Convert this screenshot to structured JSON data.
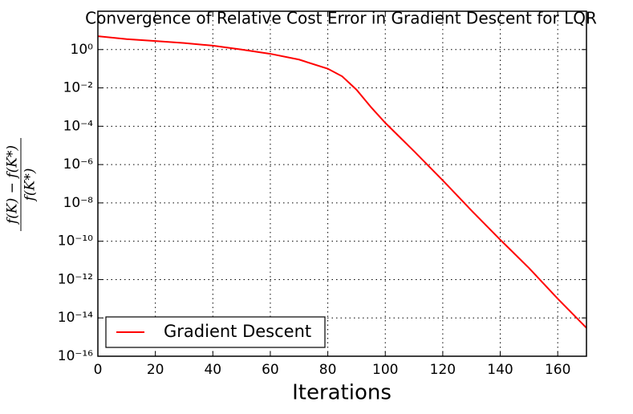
{
  "chart_data": {
    "type": "line",
    "title": "Convergence of Relative Cost Error in Gradient Descent for LQR",
    "xlabel": "Iterations",
    "ylabel": {
      "numerator": "f(K) − f(K*)",
      "denominator": "f(K*)"
    },
    "x": [
      0,
      10,
      20,
      30,
      40,
      50,
      60,
      70,
      80,
      85,
      90,
      95,
      100,
      110,
      120,
      130,
      140,
      150,
      160,
      170
    ],
    "series": [
      {
        "name": "Gradient Descent",
        "color": "#ff0000",
        "values": [
          5,
          3.5,
          2.8,
          2.2,
          1.6,
          1.0,
          0.6,
          0.3,
          0.1,
          0.04,
          0.008,
          0.001,
          0.00015,
          5e-06,
          1.5e-07,
          4e-09,
          1.2e-10,
          4e-12,
          1e-13,
          3e-15
        ]
      }
    ],
    "xlim": [
      0,
      170
    ],
    "xticks": [
      0,
      20,
      40,
      60,
      80,
      100,
      120,
      140,
      160
    ],
    "ylim": [
      1e-16,
      100
    ],
    "yscale": "log",
    "yticks": [
      {
        "value": 1e-16,
        "label": "10⁻¹⁶"
      },
      {
        "value": 1e-14,
        "label": "10⁻¹⁴"
      },
      {
        "value": 1e-12,
        "label": "10⁻¹²"
      },
      {
        "value": 1e-10,
        "label": "10⁻¹⁰"
      },
      {
        "value": 1e-08,
        "label": "10⁻⁸"
      },
      {
        "value": 1e-06,
        "label": "10⁻⁶"
      },
      {
        "value": 0.0001,
        "label": "10⁻⁴"
      },
      {
        "value": 0.01,
        "label": "10⁻²"
      },
      {
        "value": 1,
        "label": "10⁰"
      }
    ],
    "grid": true,
    "legend": "lower left"
  }
}
